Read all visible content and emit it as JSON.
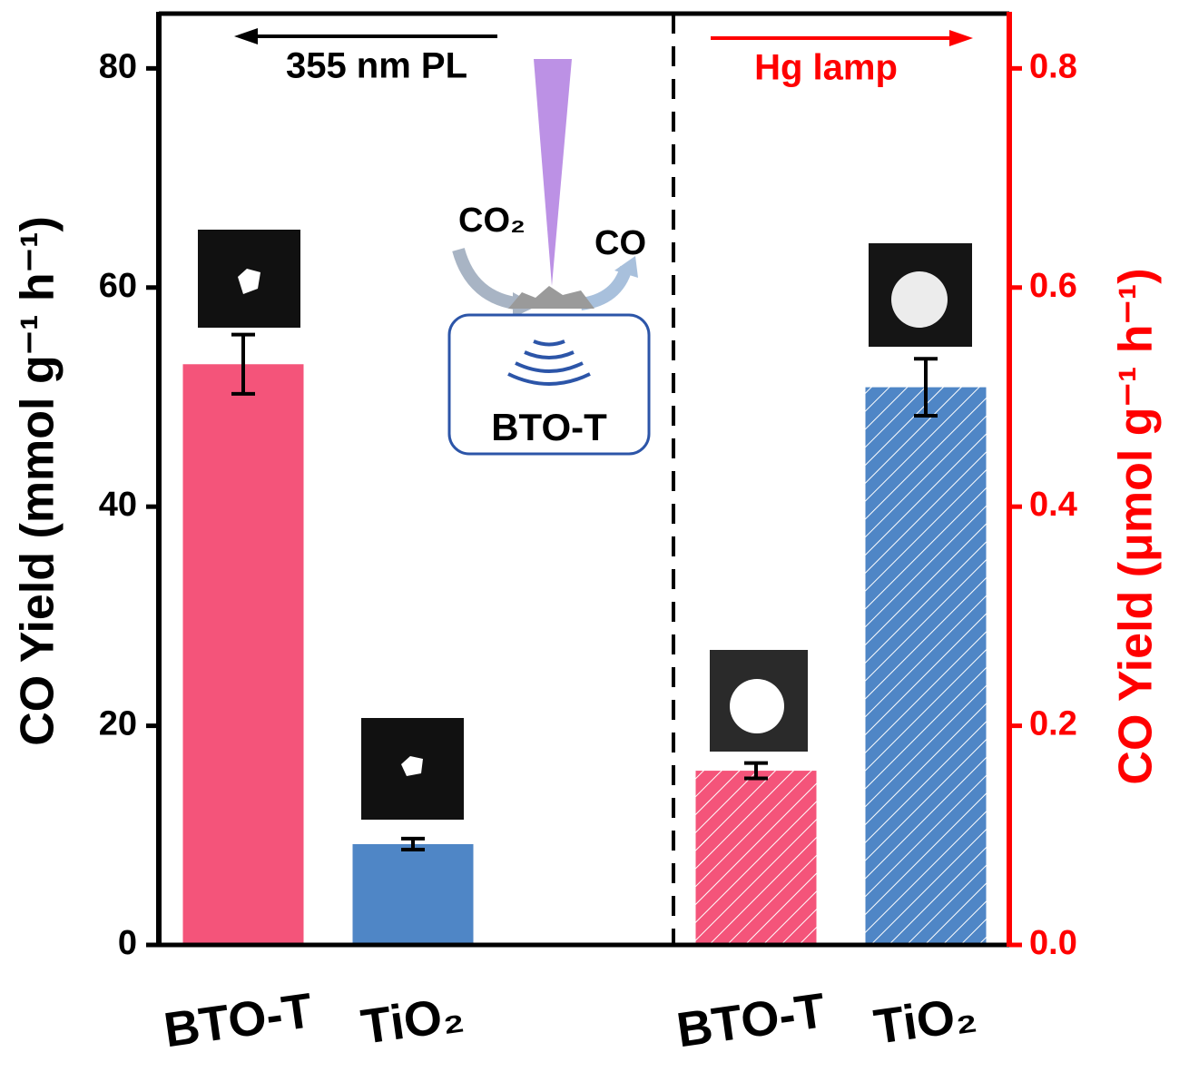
{
  "chart_data": {
    "type": "bar",
    "ylabel": "CO Yield (mmol g⁻¹ h⁻¹)",
    "y2label": "CO Yield (μmol g⁻¹ h⁻¹)",
    "categories": [
      "BTO-T",
      "TiO₂",
      "BTO-T",
      "TiO₂"
    ],
    "category_colors": [
      "#f4547a",
      "#4f86c6",
      "#f4547a",
      "#4f86c6"
    ],
    "series": [
      {
        "name": "355 nm PL",
        "color": "#000000",
        "values": [
          53,
          9.2,
          null,
          null
        ],
        "errors": [
          2.7,
          0.5,
          null,
          null
        ]
      },
      {
        "name": "Hg lamp",
        "color": "#ff0000",
        "axis": "y2",
        "hatch": true,
        "values": [
          null,
          null,
          0.159,
          0.509
        ],
        "errors": [
          null,
          null,
          0.007,
          0.026
        ]
      }
    ],
    "ylim": [
      0,
      85
    ],
    "yticks": [
      0,
      20,
      40,
      60,
      80
    ],
    "y2lim": [
      0,
      0.85
    ],
    "y2ticks": [
      {
        "value": 0,
        "label": "0.0"
      },
      0.2,
      0.4,
      0.6,
      0.8
    ],
    "inset": {
      "reactant": "CO₂",
      "product": "CO",
      "sample": "BTO-T"
    }
  }
}
